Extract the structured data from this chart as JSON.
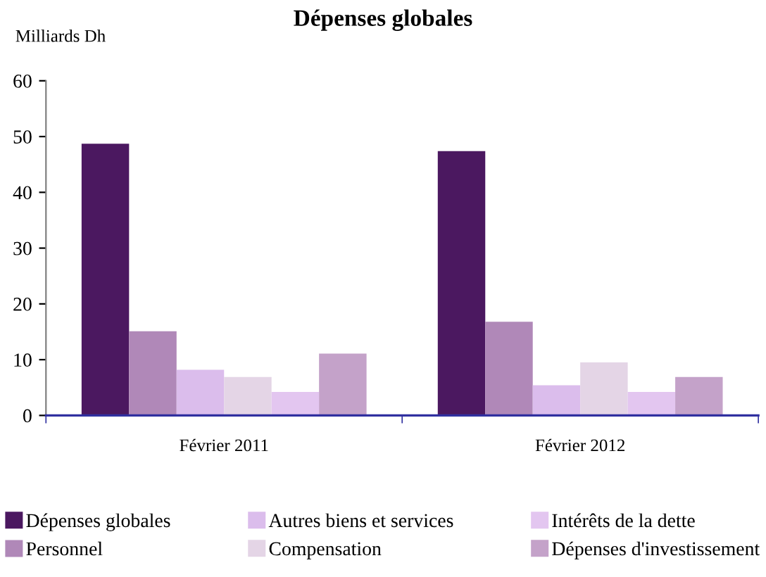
{
  "chart_data": {
    "type": "bar",
    "title": "Dépenses globales",
    "ylabel": "Milliards Dh",
    "categories": [
      "Février 2011",
      "Février 2012"
    ],
    "series": [
      {
        "name": "Dépenses globales",
        "color": "#4b1860",
        "values": [
          48.7,
          47.4
        ]
      },
      {
        "name": "Personnel",
        "color": "#b088b8",
        "values": [
          15.1,
          16.8
        ]
      },
      {
        "name": "Autres biens et services",
        "color": "#dbbdec",
        "values": [
          8.2,
          5.4
        ]
      },
      {
        "name": "Compensation",
        "color": "#e4d5e6",
        "values": [
          6.9,
          9.5
        ]
      },
      {
        "name": "Intérêts de la dette",
        "color": "#e3c6f0",
        "values": [
          4.2,
          4.2
        ]
      },
      {
        "name": "Dépenses d'investissement",
        "color": "#c4a2c9",
        "values": [
          11.1,
          6.9
        ]
      }
    ],
    "ylim": [
      0,
      60
    ],
    "yticks": [
      0,
      10,
      20,
      30,
      40,
      50,
      60
    ],
    "grid": false,
    "legend": "bottom"
  }
}
